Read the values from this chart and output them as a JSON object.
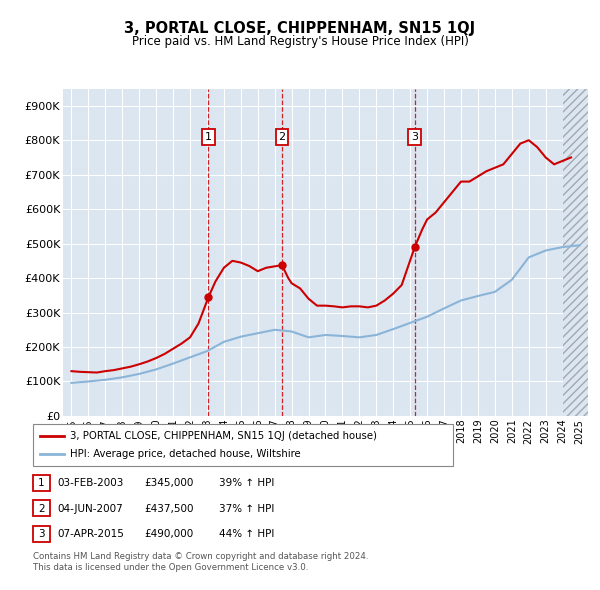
{
  "title": "3, PORTAL CLOSE, CHIPPENHAM, SN15 1QJ",
  "subtitle": "Price paid vs. HM Land Registry's House Price Index (HPI)",
  "red_label": "3, PORTAL CLOSE, CHIPPENHAM, SN15 1QJ (detached house)",
  "blue_label": "HPI: Average price, detached house, Wiltshire",
  "footer1": "Contains HM Land Registry data © Crown copyright and database right 2024.",
  "footer2": "This data is licensed under the Open Government Licence v3.0.",
  "transactions": [
    {
      "num": 1,
      "date": "03-FEB-2003",
      "price": 345000,
      "pct": "39%",
      "year_x": 2003.09
    },
    {
      "num": 2,
      "date": "04-JUN-2007",
      "price": 437500,
      "pct": "37%",
      "year_x": 2007.43
    },
    {
      "num": 3,
      "date": "07-APR-2015",
      "price": 490000,
      "pct": "44%",
      "year_x": 2015.27
    }
  ],
  "hpi_years": [
    1995,
    1996,
    1997,
    1998,
    1999,
    2000,
    2001,
    2002,
    2003,
    2004,
    2005,
    2006,
    2007,
    2008,
    2009,
    2010,
    2011,
    2012,
    2013,
    2014,
    2015,
    2016,
    2017,
    2018,
    2019,
    2020,
    2021,
    2022,
    2023,
    2024,
    2025
  ],
  "hpi_values": [
    96000,
    100000,
    105000,
    112000,
    122000,
    135000,
    152000,
    170000,
    188000,
    215000,
    230000,
    240000,
    250000,
    245000,
    228000,
    235000,
    232000,
    228000,
    235000,
    252000,
    270000,
    288000,
    312000,
    335000,
    348000,
    360000,
    395000,
    460000,
    480000,
    490000,
    495000
  ],
  "red_years": [
    1995,
    1995.5,
    1996,
    1996.5,
    1997,
    1997.5,
    1998,
    1998.5,
    1999,
    1999.5,
    2000,
    2000.5,
    2001,
    2001.5,
    2002,
    2002.5,
    2003.09,
    2003.5,
    2004,
    2004.5,
    2005,
    2005.5,
    2006,
    2006.5,
    2007.43,
    2007.8,
    2008,
    2008.5,
    2009,
    2009.5,
    2010,
    2010.5,
    2011,
    2011.5,
    2012,
    2012.5,
    2013,
    2013.5,
    2014,
    2014.5,
    2015.27,
    2015.7,
    2016,
    2016.5,
    2017,
    2017.5,
    2018,
    2018.5,
    2019,
    2019.5,
    2020,
    2020.5,
    2021,
    2021.5,
    2022,
    2022.5,
    2023,
    2023.5,
    2024,
    2024.5
  ],
  "red_values": [
    130000,
    128000,
    127000,
    126000,
    130000,
    133000,
    138000,
    143000,
    150000,
    158000,
    168000,
    180000,
    195000,
    210000,
    228000,
    268000,
    345000,
    390000,
    430000,
    450000,
    445000,
    435000,
    420000,
    430000,
    437500,
    400000,
    385000,
    370000,
    340000,
    320000,
    320000,
    318000,
    315000,
    318000,
    318000,
    315000,
    320000,
    335000,
    355000,
    380000,
    490000,
    540000,
    570000,
    590000,
    620000,
    650000,
    680000,
    680000,
    695000,
    710000,
    720000,
    730000,
    760000,
    790000,
    800000,
    780000,
    750000,
    730000,
    740000,
    750000
  ],
  "xlim": [
    1994.5,
    2025.5
  ],
  "ylim": [
    0,
    950000
  ],
  "yticks": [
    0,
    100000,
    200000,
    300000,
    400000,
    500000,
    600000,
    700000,
    800000,
    900000
  ],
  "ytick_labels": [
    "£0",
    "£100K",
    "£200K",
    "£300K",
    "£400K",
    "£500K",
    "£600K",
    "£700K",
    "£800K",
    "£900K"
  ],
  "xticks": [
    1995,
    1996,
    1997,
    1998,
    1999,
    2000,
    2001,
    2002,
    2003,
    2004,
    2005,
    2006,
    2007,
    2008,
    2009,
    2010,
    2011,
    2012,
    2013,
    2014,
    2015,
    2016,
    2017,
    2018,
    2019,
    2020,
    2021,
    2022,
    2023,
    2024,
    2025
  ],
  "bg_color": "#dce6f1",
  "red_color": "#cc0000",
  "blue_color": "#8ab4d8",
  "grid_color": "#ffffff",
  "box_edge_color": "#cc0000",
  "dashed_color": "#cc0000",
  "hatch_start": 2024.0
}
